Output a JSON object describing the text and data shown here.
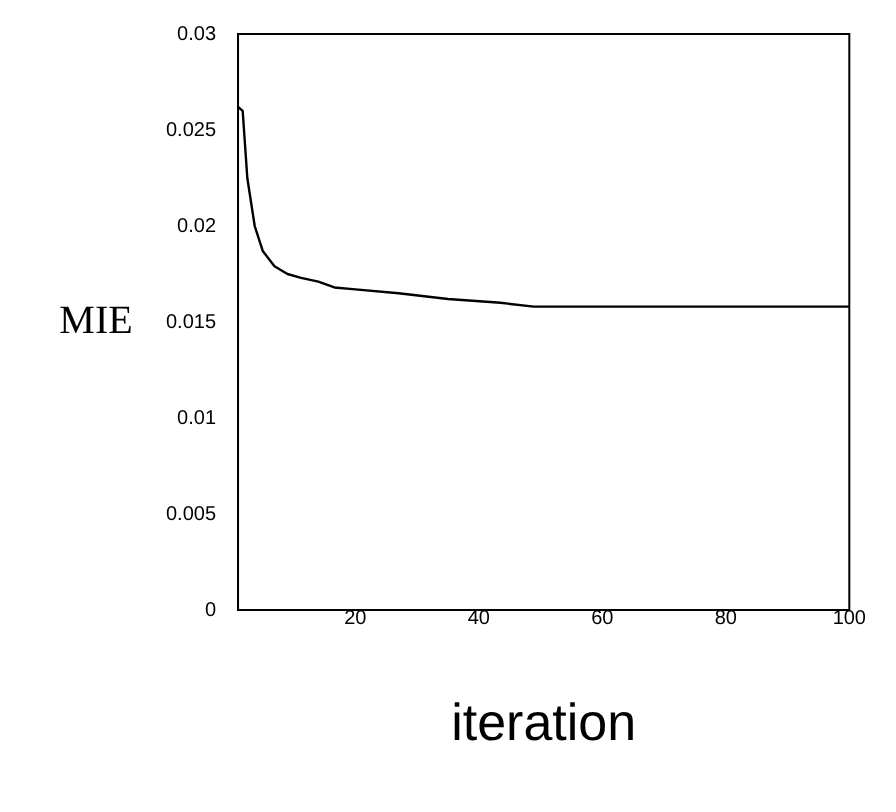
{
  "chart_data": {
    "type": "line",
    "xlabel": "iteration",
    "ylabel": "MIE",
    "x": [
      1,
      1.75,
      2.5,
      3.7,
      5,
      6.9,
      9,
      11.2,
      14,
      16.6,
      20,
      27,
      35,
      43.5,
      48.9,
      60,
      80,
      100
    ],
    "series": [
      {
        "color": "#000000",
        "values": [
          0.0262,
          0.026,
          0.0225,
          0.02,
          0.0187,
          0.0179,
          0.0175,
          0.0173,
          0.0171,
          0.0168,
          0.0167,
          0.0165,
          0.0162,
          0.016,
          0.0158,
          0.0158,
          0.0158,
          0.0158
        ]
      }
    ],
    "xlim": [
      1,
      100
    ],
    "xticks": [
      20,
      40,
      60,
      80,
      100
    ],
    "ylim": [
      0,
      0.03
    ],
    "yticks": [
      0,
      0.005,
      0.01,
      0.015,
      0.02,
      0.025,
      0.03
    ],
    "grid": false,
    "legend": false,
    "marker": "none",
    "line_style": "solid"
  }
}
